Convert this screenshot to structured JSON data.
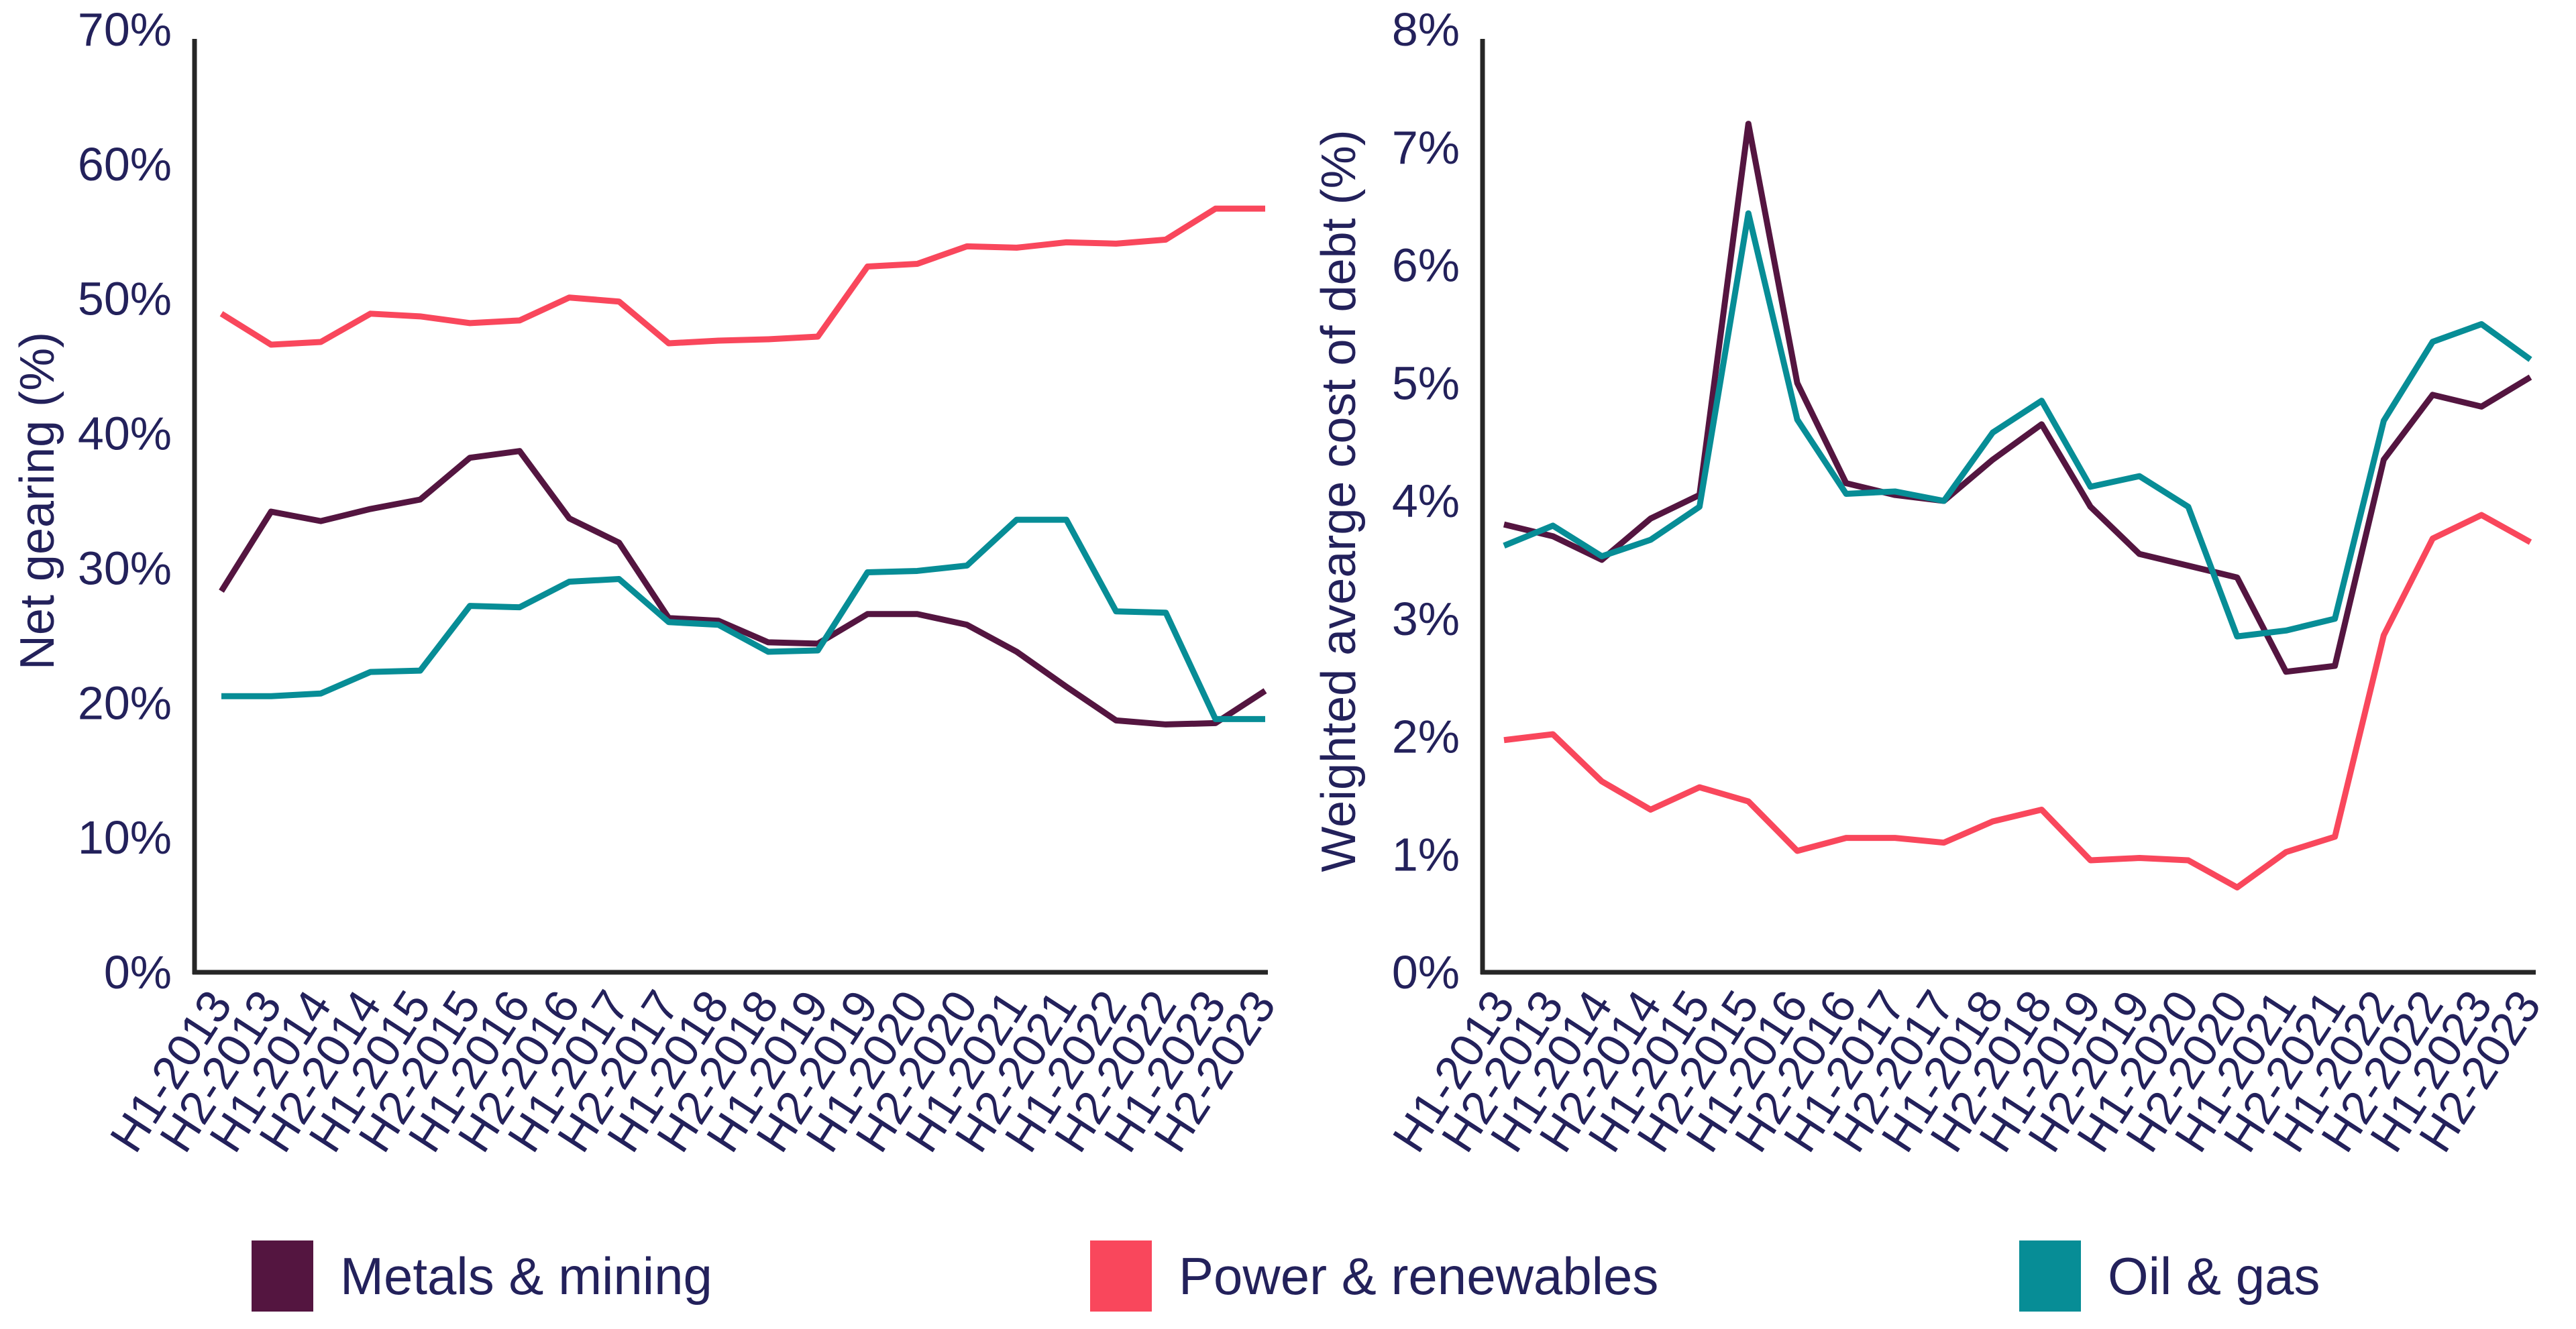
{
  "colors": {
    "metals": "#541540",
    "power": "#F9475C",
    "oil": "#078D96",
    "text": "#23215B",
    "axis": "#262626",
    "background": "#ffffff"
  },
  "categories": [
    "H1-2013",
    "H2-2013",
    "H1-2014",
    "H2-2014",
    "H1-2015",
    "H2-2015",
    "H1-2016",
    "H2-2016",
    "H1-2017",
    "H2-2017",
    "H1-2018",
    "H2-2018",
    "H1-2019",
    "H2-2019",
    "H1-2020",
    "H2-2020",
    "H1-2021",
    "H2-2021",
    "H1-2022",
    "H2-2022",
    "H1-2023",
    "H2-2023"
  ],
  "legend": [
    {
      "label": "Metals & mining",
      "color_key": "metals"
    },
    {
      "label": "Power & renewables",
      "color_key": "power"
    },
    {
      "label": "Oil & gas",
      "color_key": "oil"
    }
  ],
  "chart_data": [
    {
      "type": "line",
      "title": "",
      "xlabel": "",
      "ylabel": "Net gearing (%)",
      "ylim": [
        0,
        70
      ],
      "yticks": [
        0,
        10,
        20,
        30,
        40,
        50,
        60,
        70
      ],
      "ytick_suffix": "%",
      "grid": false,
      "legend_position": "bottom",
      "categories": [
        "H1-2013",
        "H2-2013",
        "H1-2014",
        "H2-2014",
        "H1-2015",
        "H2-2015",
        "H1-2016",
        "H2-2016",
        "H1-2017",
        "H2-2017",
        "H1-2018",
        "H2-2018",
        "H1-2019",
        "H2-2019",
        "H1-2020",
        "H2-2020",
        "H1-2021",
        "H2-2021",
        "H1-2022",
        "H2-2022",
        "H1-2023",
        "H2-2023"
      ],
      "series": [
        {
          "name": "Metals & mining",
          "color_key": "metals",
          "values": [
            28.3,
            34.2,
            33.5,
            34.4,
            35.1,
            38.2,
            38.7,
            33.7,
            31.9,
            26.3,
            26.1,
            24.5,
            24.4,
            26.6,
            26.6,
            25.8,
            23.8,
            21.2,
            18.7,
            18.4,
            18.5,
            20.9
          ]
        },
        {
          "name": "Power & renewables",
          "color_key": "power",
          "values": [
            48.9,
            46.6,
            46.8,
            48.9,
            48.7,
            48.2,
            48.4,
            50.1,
            49.8,
            46.7,
            46.9,
            47.0,
            47.2,
            52.4,
            52.6,
            53.9,
            53.8,
            54.2,
            54.1,
            54.4,
            56.7,
            56.7
          ]
        },
        {
          "name": "Oil & gas",
          "color_key": "oil",
          "values": [
            20.5,
            20.5,
            20.7,
            22.3,
            22.4,
            27.2,
            27.1,
            29.0,
            29.2,
            26.0,
            25.8,
            23.8,
            23.9,
            29.7,
            29.8,
            30.2,
            33.6,
            33.6,
            26.8,
            26.7,
            18.8,
            18.8
          ]
        }
      ]
    },
    {
      "type": "line",
      "title": "",
      "xlabel": "",
      "ylabel": "Weighted avearge cost of debt (%)",
      "ylim": [
        0,
        8
      ],
      "yticks": [
        0,
        1,
        2,
        3,
        4,
        5,
        6,
        7,
        8
      ],
      "ytick_suffix": "%",
      "grid": false,
      "legend_position": "bottom",
      "categories": [
        "H1-2013",
        "H2-2013",
        "H1-2014",
        "H2-2014",
        "H1-2015",
        "H2-2015",
        "H1-2016",
        "H2-2016",
        "H1-2017",
        "H2-2017",
        "H1-2018",
        "H2-2018",
        "H1-2019",
        "H2-2019",
        "H1-2020",
        "H2-2020",
        "H1-2021",
        "H2-2021",
        "H1-2022",
        "H2-2022",
        "H1-2023",
        "H2-2023"
      ],
      "series": [
        {
          "name": "Metals & mining",
          "color_key": "metals",
          "values": [
            3.8,
            3.7,
            3.5,
            3.85,
            4.05,
            7.2,
            5.0,
            4.15,
            4.05,
            4.0,
            4.35,
            4.65,
            3.95,
            3.55,
            3.45,
            3.35,
            2.55,
            2.6,
            4.35,
            4.9,
            4.8,
            5.05
          ]
        },
        {
          "name": "Power & renewables",
          "color_key": "power",
          "values": [
            1.97,
            2.02,
            1.62,
            1.38,
            1.57,
            1.45,
            1.03,
            1.14,
            1.14,
            1.1,
            1.28,
            1.38,
            0.95,
            0.97,
            0.95,
            0.72,
            1.02,
            1.15,
            2.86,
            3.68,
            3.88,
            3.65
          ]
        },
        {
          "name": "Oil & gas",
          "color_key": "oil",
          "values": [
            3.62,
            3.79,
            3.53,
            3.67,
            3.95,
            6.44,
            4.69,
            4.06,
            4.08,
            4.0,
            4.58,
            4.85,
            4.12,
            4.21,
            3.95,
            2.85,
            2.9,
            3.0,
            4.68,
            5.35,
            5.5,
            5.2
          ]
        }
      ]
    }
  ]
}
